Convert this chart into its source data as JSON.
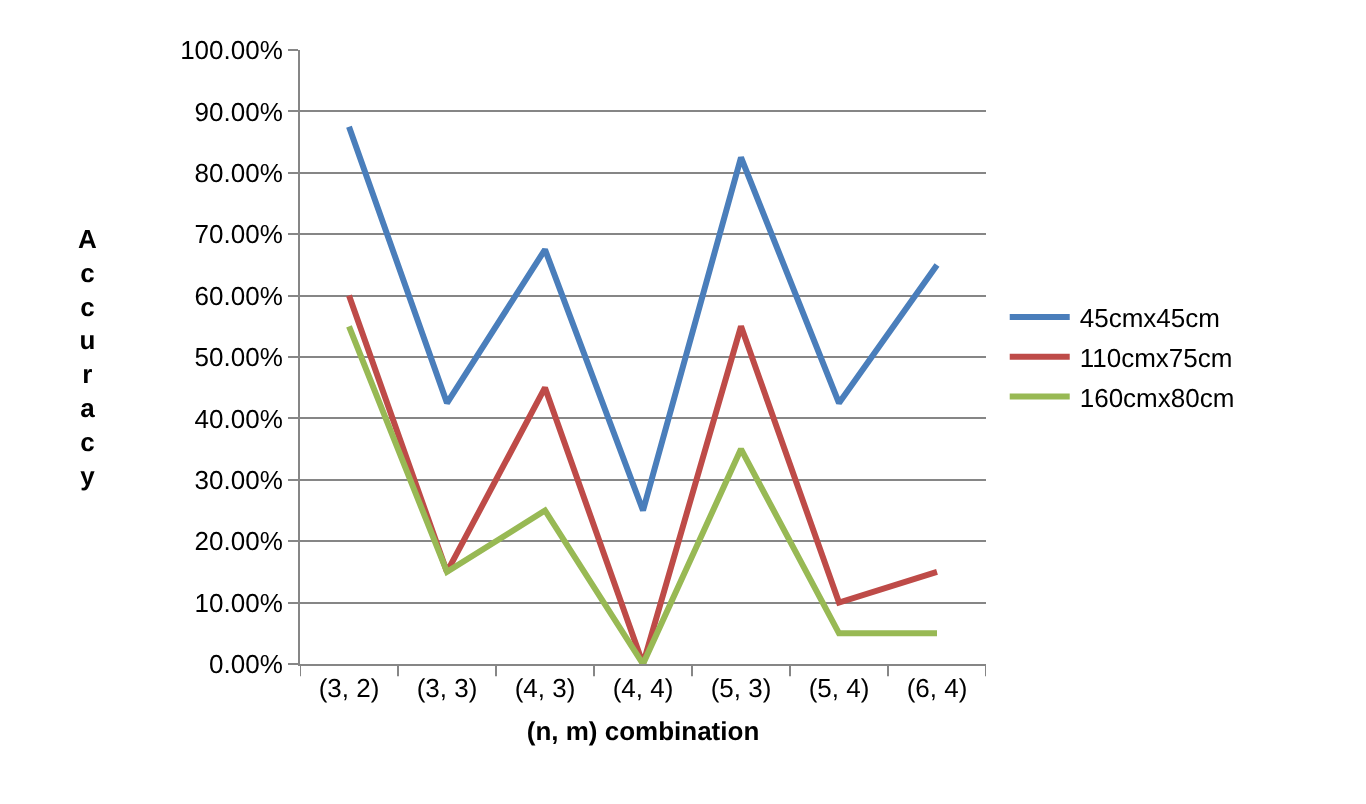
{
  "chart_data": {
    "type": "line",
    "xlabel": "(n, m) combination",
    "ylabel": "Accuracy",
    "categories": [
      "(3, 2)",
      "(3, 3)",
      "(4, 3)",
      "(4, 4)",
      "(5, 3)",
      "(5, 4)",
      "(6, 4)"
    ],
    "series": [
      {
        "name": "45cmx45cm",
        "color": "#4a7ebb",
        "values": [
          87.5,
          42.5,
          67.5,
          25,
          82.5,
          42.5,
          65
        ]
      },
      {
        "name": "110cmx75cm",
        "color": "#be4b48",
        "values": [
          60,
          15,
          45,
          0,
          55,
          10,
          15
        ]
      },
      {
        "name": "160cmx80cm",
        "color": "#98b954",
        "values": [
          55,
          15,
          25,
          0,
          35,
          5,
          5
        ]
      }
    ],
    "ylim": [
      0,
      100
    ],
    "yticks": [
      {
        "value": 0,
        "label": "0.00%"
      },
      {
        "value": 10,
        "label": "10.00%"
      },
      {
        "value": 20,
        "label": "20.00%"
      },
      {
        "value": 30,
        "label": "30.00%"
      },
      {
        "value": 40,
        "label": "40.00%"
      },
      {
        "value": 50,
        "label": "50.00%"
      },
      {
        "value": 60,
        "label": "60.00%"
      },
      {
        "value": 70,
        "label": "70.00%"
      },
      {
        "value": 80,
        "label": "80.00%"
      },
      {
        "value": 90,
        "label": "90.00%"
      },
      {
        "value": 100,
        "label": "100.00%"
      }
    ],
    "grid": "y",
    "legend": "right",
    "marker": "none",
    "line_style": "solid"
  }
}
